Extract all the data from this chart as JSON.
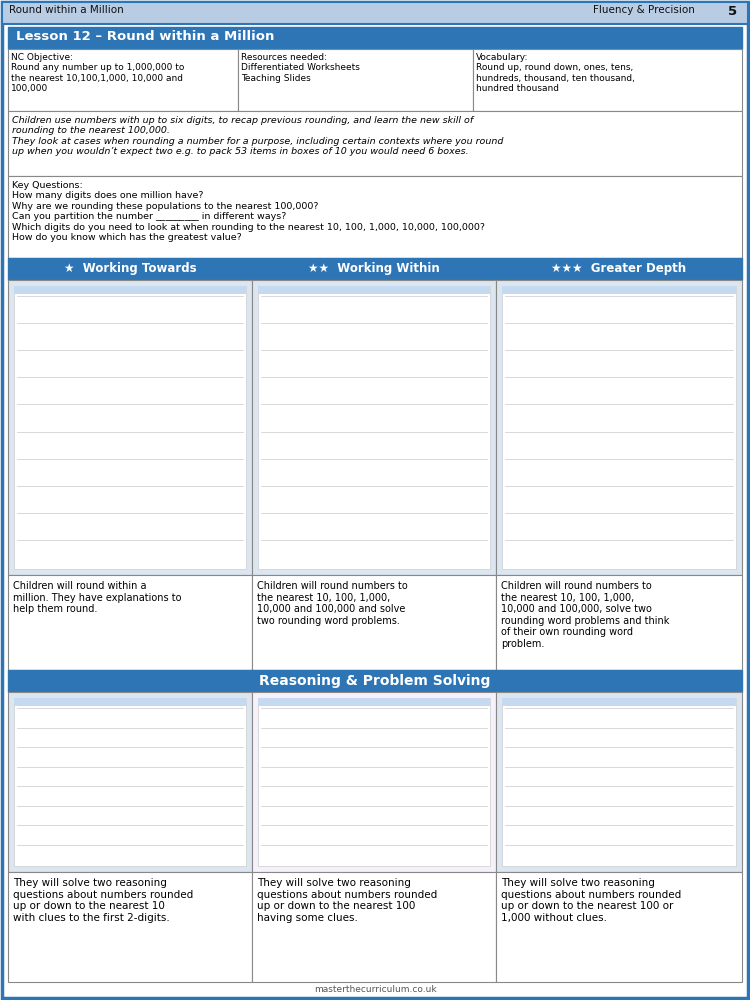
{
  "header_bg": "#b8cce4",
  "header_text_left": "Round within a Million",
  "header_text_center": "Fluency & Precision",
  "header_page": "5",
  "lesson_title_bg": "#2e75b6",
  "lesson_title_text": "Lesson 12 – Round within a Million",
  "lesson_title_color": "#ffffff",
  "nc_objective_text": "NC Objective:\nRound any number up to 1,000,000 to\nthe nearest 10,100,1,000, 10,000 and\n100,000",
  "resources_text": "Resources needed:\nDifferentiated Worksheets\nTeaching Slides",
  "vocabulary_text": "Vocabulary:\nRound up, round down, ones, tens,\nhundreds, thousand, ten thousand,\nhundred thousand",
  "description_text": "Children use numbers with up to six digits, to recap previous rounding, and learn the new skill of\nrounding to the nearest 100,000.\nThey look at cases when rounding a number for a purpose, including certain contexts where you round\nup when you wouldn’t expect two e.g. to pack 53 items in boxes of 10 you would need 6 boxes.",
  "key_questions_text": "Key Questions:\nHow many digits does one million have?\nWhy are we rounding these populations to the nearest 100,000?\nCan you partition the number _________ in different ways?\nWhich digits do you need to look at when rounding to the nearest 10, 100, 1,000, 10,000, 100,000?\nHow do you know which has the greatest value?",
  "working_towards_title": "★  Working Towards",
  "working_within_title": "★★  Working Within",
  "greater_depth_title": "★★★  Greater Depth",
  "section_header_bg": "#2e75b6",
  "wt_caption": "Children will round within a\nmillion. They have explanations to\nhelp them round.",
  "ww_caption": "Children will round numbers to\nthe nearest 10, 100, 1,000,\n10,000 and 100,000 and solve\ntwo rounding word problems.",
  "gd_caption": "Children will round numbers to\nthe nearest 10, 100, 1,000,\n10,000 and 100,000, solve two\nrounding word problems and think\nof their own rounding word\nproblem.",
  "reasoning_title": "Reasoning & Problem Solving",
  "reasoning_bg": "#2e75b6",
  "r1_caption": "They will solve two reasoning\nquestions about numbers rounded\nup or down to the nearest 10\nwith clues to the first 2-digits.",
  "r2_caption": "They will solve two reasoning\nquestions about numbers rounded\nup or down to the nearest 100\nhaving some clues.",
  "r3_caption": "They will solve two reasoning\nquestions about numbers rounded\nup or down to the nearest 100 or\n1,000 without clues.",
  "footer_text": "masterthecurriculum.co.uk",
  "outer_border": "#2e75b6",
  "thumbnail_bg": "#dce6f1",
  "thumbnail_border": "#aaaaaa"
}
